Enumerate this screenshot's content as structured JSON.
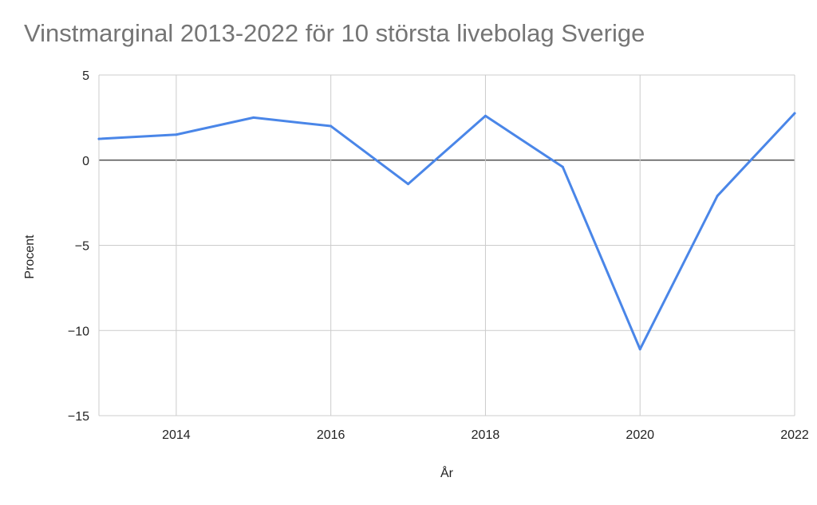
{
  "chart_data": {
    "type": "line",
    "title": "Vinstmarginal 2013-2022 för 10 största livebolag Sverige",
    "xlabel": "År",
    "ylabel": "Procent",
    "x": [
      2013,
      2014,
      2015,
      2016,
      2017,
      2018,
      2019,
      2020,
      2021,
      2022
    ],
    "series": [
      {
        "values": [
          1.25,
          1.5,
          2.5,
          2.0,
          -1.4,
          2.6,
          -0.4,
          -11.1,
          -2.1,
          2.75
        ]
      }
    ],
    "xlim": [
      2013,
      2022
    ],
    "ylim": [
      -15,
      5
    ],
    "xticks": [
      2014,
      2016,
      2018,
      2020,
      2022
    ],
    "xtick_labels": [
      "2014",
      "2016",
      "2018",
      "2020",
      "2022"
    ],
    "yticks": [
      5,
      0,
      -5,
      -10,
      -15
    ],
    "ytick_labels": [
      "5",
      "0",
      "−5",
      "−10",
      "−15"
    ],
    "grid": true,
    "legend": "none",
    "colors": {
      "line": "#4a86e8",
      "grid": "#cccccc",
      "zero": "#333333"
    }
  }
}
